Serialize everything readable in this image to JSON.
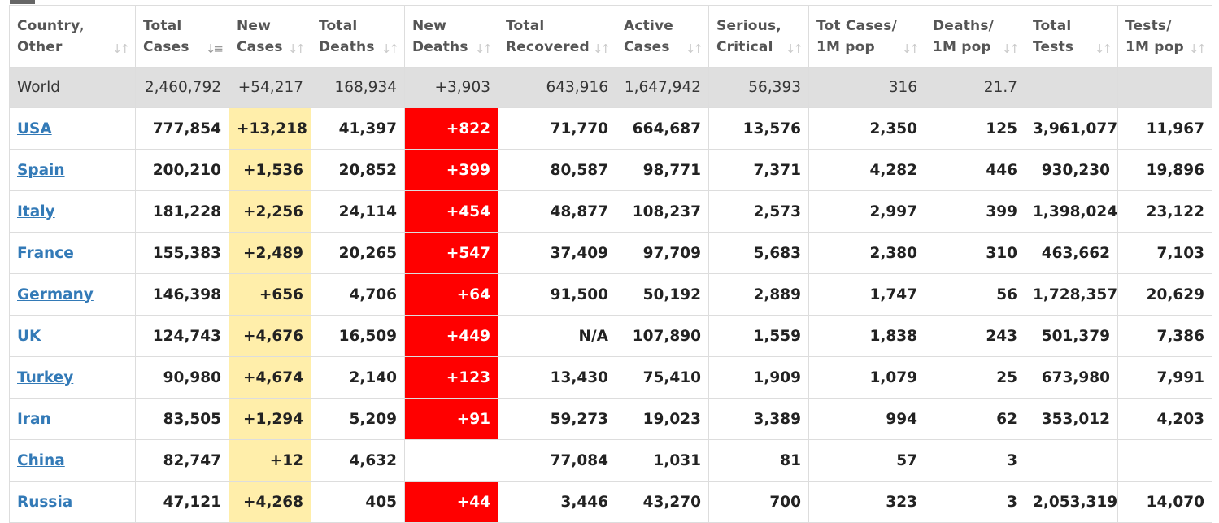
{
  "colors": {
    "new_cases_bg": "#ffeeaa",
    "new_deaths_bg": "#ff0000",
    "world_row_bg": "#dfdfdf",
    "link": "#337ab7"
  },
  "columns": [
    {
      "line1": "Country,",
      "line2": "Other",
      "sort_icon": "sort-arrows-icon"
    },
    {
      "line1": "Total",
      "line2": "Cases",
      "sort_icon": "sort-desc-icon"
    },
    {
      "line1": "New",
      "line2": "Cases",
      "sort_icon": "sort-arrows-icon"
    },
    {
      "line1": "Total",
      "line2": "Deaths",
      "sort_icon": "sort-arrows-icon"
    },
    {
      "line1": "New",
      "line2": "Deaths",
      "sort_icon": "sort-arrows-icon"
    },
    {
      "line1": "Total",
      "line2": "Recovered",
      "sort_icon": "sort-arrows-icon"
    },
    {
      "line1": "Active",
      "line2": "Cases",
      "sort_icon": "sort-arrows-icon"
    },
    {
      "line1": "Serious,",
      "line2": "Critical",
      "sort_icon": "sort-arrows-icon"
    },
    {
      "line1": "Tot Cases/",
      "line2": "1M pop",
      "sort_icon": "sort-arrows-icon"
    },
    {
      "line1": "Deaths/",
      "line2": "1M pop",
      "sort_icon": "sort-arrows-icon"
    },
    {
      "line1": "Total",
      "line2": "Tests",
      "sort_icon": "sort-arrows-icon"
    },
    {
      "line1": "Tests/",
      "line2": "1M pop",
      "sort_icon": "sort-arrows-icon"
    }
  ],
  "world": [
    "World",
    "2,460,792",
    "+54,217",
    "168,934",
    "+3,903",
    "643,916",
    "1,647,942",
    "56,393",
    "316",
    "21.7",
    "",
    ""
  ],
  "rows": [
    [
      "USA",
      "777,854",
      "+13,218",
      "41,397",
      "+822",
      "71,770",
      "664,687",
      "13,576",
      "2,350",
      "125",
      "3,961,077",
      "11,967"
    ],
    [
      "Spain",
      "200,210",
      "+1,536",
      "20,852",
      "+399",
      "80,587",
      "98,771",
      "7,371",
      "4,282",
      "446",
      "930,230",
      "19,896"
    ],
    [
      "Italy",
      "181,228",
      "+2,256",
      "24,114",
      "+454",
      "48,877",
      "108,237",
      "2,573",
      "2,997",
      "399",
      "1,398,024",
      "23,122"
    ],
    [
      "France",
      "155,383",
      "+2,489",
      "20,265",
      "+547",
      "37,409",
      "97,709",
      "5,683",
      "2,380",
      "310",
      "463,662",
      "7,103"
    ],
    [
      "Germany",
      "146,398",
      "+656",
      "4,706",
      "+64",
      "91,500",
      "50,192",
      "2,889",
      "1,747",
      "56",
      "1,728,357",
      "20,629"
    ],
    [
      "UK",
      "124,743",
      "+4,676",
      "16,509",
      "+449",
      "N/A",
      "107,890",
      "1,559",
      "1,838",
      "243",
      "501,379",
      "7,386"
    ],
    [
      "Turkey",
      "90,980",
      "+4,674",
      "2,140",
      "+123",
      "13,430",
      "75,410",
      "1,909",
      "1,079",
      "25",
      "673,980",
      "7,991"
    ],
    [
      "Iran",
      "83,505",
      "+1,294",
      "5,209",
      "+91",
      "59,273",
      "19,023",
      "3,389",
      "994",
      "62",
      "353,012",
      "4,203"
    ],
    [
      "China",
      "82,747",
      "+12",
      "4,632",
      "",
      "77,084",
      "1,031",
      "81",
      "57",
      "3",
      "",
      ""
    ],
    [
      "Russia",
      "47,121",
      "+4,268",
      "405",
      "+44",
      "3,446",
      "43,270",
      "700",
      "323",
      "3",
      "2,053,319",
      "14,070"
    ]
  ]
}
